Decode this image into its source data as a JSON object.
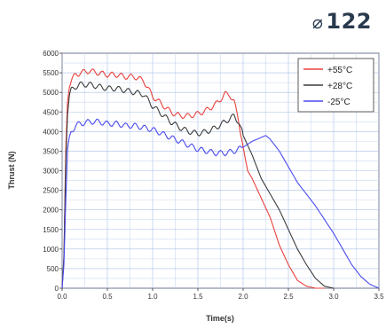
{
  "badge": {
    "symbol": "⌀",
    "value": "122"
  },
  "chart_data": {
    "type": "line",
    "title": "",
    "xlabel": "Time(s)",
    "ylabel": "Thrust (N)",
    "xlim": [
      0,
      3.5
    ],
    "ylim": [
      0,
      6000
    ],
    "xticks": [
      "0.0",
      "0.5",
      "1.0",
      "1.5",
      "2.0",
      "2.5",
      "3.0",
      "3.5"
    ],
    "yticks": [
      "0",
      "500",
      "1000",
      "1500",
      "2000",
      "2500",
      "3000",
      "3500",
      "4000",
      "4500",
      "5000",
      "5500",
      "6000"
    ],
    "grid": true,
    "legend_position": "top-right",
    "series": [
      {
        "name": "+55°C",
        "color": "#e8413c",
        "x": [
          0,
          0.02,
          0.04,
          0.06,
          0.08,
          0.1,
          0.15,
          0.2,
          0.3,
          0.4,
          0.5,
          0.6,
          0.7,
          0.8,
          0.9,
          1.0,
          1.1,
          1.2,
          1.3,
          1.4,
          1.5,
          1.6,
          1.7,
          1.8,
          1.85,
          1.9,
          1.95,
          2.0,
          2.05,
          2.1,
          2.2,
          2.3,
          2.4,
          2.5,
          2.6,
          2.7,
          2.8,
          2.9
        ],
        "y": [
          0,
          800,
          3500,
          4800,
          5200,
          5300,
          5450,
          5500,
          5550,
          5500,
          5450,
          5450,
          5400,
          5400,
          5300,
          4900,
          4700,
          4500,
          4400,
          4400,
          4450,
          4550,
          4700,
          4950,
          4950,
          4750,
          4300,
          3600,
          3000,
          2800,
          2300,
          1800,
          1100,
          600,
          200,
          50,
          0,
          0
        ]
      },
      {
        "name": "+28°C",
        "color": "#3c3c3c",
        "x": [
          0,
          0.02,
          0.04,
          0.06,
          0.08,
          0.1,
          0.15,
          0.2,
          0.3,
          0.4,
          0.5,
          0.6,
          0.7,
          0.8,
          0.9,
          1.0,
          1.1,
          1.2,
          1.3,
          1.4,
          1.5,
          1.6,
          1.7,
          1.8,
          1.9,
          1.95,
          2.0,
          2.1,
          2.2,
          2.3,
          2.4,
          2.5,
          2.6,
          2.7,
          2.8,
          2.9,
          3.0
        ],
        "y": [
          0,
          800,
          3200,
          4500,
          4900,
          5050,
          5150,
          5200,
          5200,
          5150,
          5100,
          5100,
          5050,
          5000,
          4950,
          4650,
          4450,
          4250,
          4100,
          4000,
          3950,
          4000,
          4100,
          4250,
          4400,
          4250,
          3900,
          3400,
          2800,
          2400,
          2000,
          1500,
          1000,
          600,
          250,
          50,
          0
        ]
      },
      {
        "name": "-25°C",
        "color": "#4a4aec",
        "x": [
          0,
          0.02,
          0.04,
          0.06,
          0.08,
          0.1,
          0.15,
          0.2,
          0.3,
          0.4,
          0.5,
          0.6,
          0.7,
          0.8,
          0.9,
          1.0,
          1.1,
          1.2,
          1.3,
          1.4,
          1.5,
          1.6,
          1.7,
          1.8,
          1.9,
          2.0,
          2.1,
          2.2,
          2.25,
          2.3,
          2.4,
          2.5,
          2.6,
          2.7,
          2.8,
          2.9,
          3.0,
          3.1,
          3.2,
          3.3,
          3.4,
          3.5
        ],
        "y": [
          0,
          600,
          2200,
          3500,
          3800,
          4000,
          4150,
          4200,
          4250,
          4250,
          4200,
          4200,
          4150,
          4150,
          4100,
          4050,
          3950,
          3850,
          3750,
          3650,
          3550,
          3500,
          3450,
          3450,
          3500,
          3600,
          3750,
          3850,
          3900,
          3800,
          3500,
          3100,
          2700,
          2400,
          2100,
          1750,
          1400,
          1000,
          600,
          300,
          100,
          0
        ]
      }
    ]
  }
}
